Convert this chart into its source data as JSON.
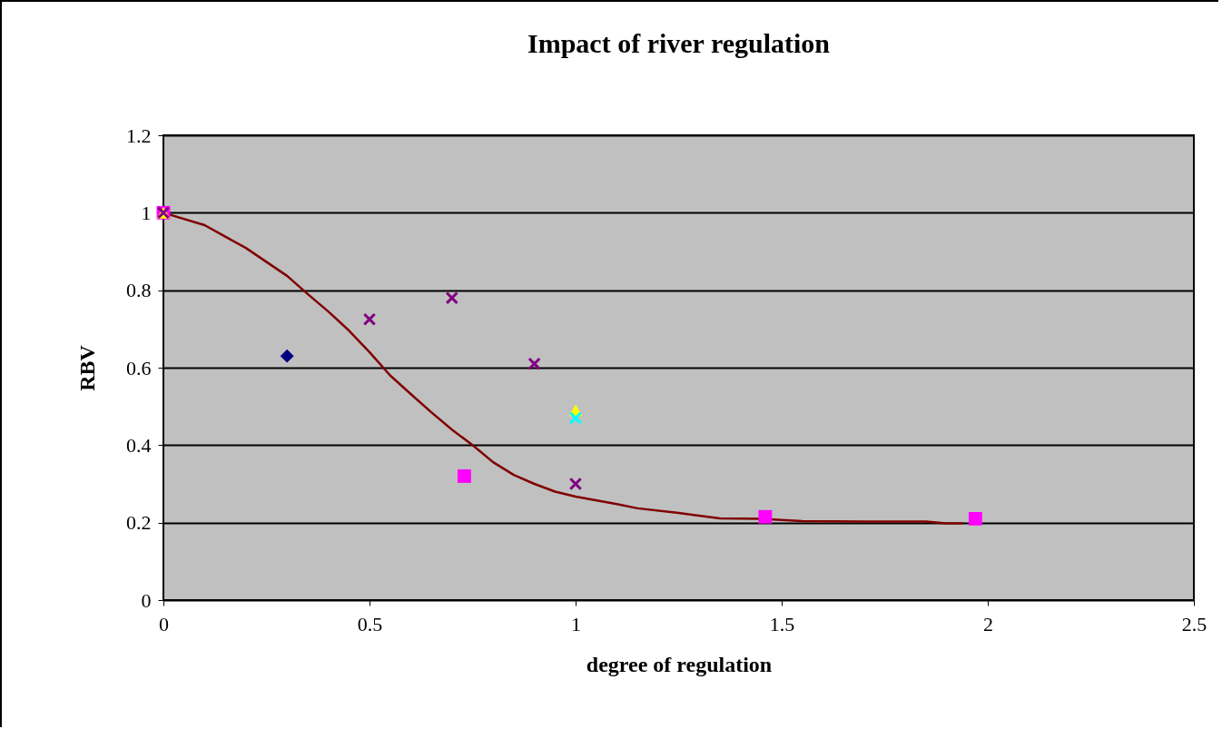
{
  "chart_data": {
    "type": "scatter",
    "title": "Impact of river regulation",
    "xlabel": "degree of regulation",
    "ylabel": "RBV",
    "xlim": [
      0,
      2.5
    ],
    "xticks": [
      0,
      0.5,
      1,
      1.5,
      2,
      2.5
    ],
    "ylim": [
      0,
      1.2
    ],
    "yticks": [
      0,
      0.2,
      0.4,
      0.6,
      0.8,
      1,
      1.2
    ],
    "grid": "y",
    "series": [
      {
        "type": "line",
        "color": "#800000",
        "marker": "none",
        "line_style": "solid",
        "x": [
          0,
          0.1,
          0.2,
          0.3,
          0.35,
          0.4,
          0.45,
          0.5,
          0.55,
          0.6,
          0.65,
          0.7,
          0.75,
          0.8,
          0.85,
          0.9,
          0.95,
          1.0,
          1.1,
          1.15,
          1.25,
          1.35,
          1.45,
          1.55,
          1.7,
          1.85,
          1.9,
          1.94
        ],
        "values": [
          1,
          0.968,
          0.909,
          0.837,
          0.79,
          0.745,
          0.696,
          0.64,
          0.58,
          0.532,
          0.485,
          0.44,
          0.4,
          0.356,
          0.323,
          0.3,
          0.28,
          0.267,
          0.248,
          0.237,
          0.225,
          0.211,
          0.21,
          0.204,
          0.203,
          0.203,
          0.198,
          0.198
        ]
      },
      {
        "type": "scatter",
        "color": "#000080",
        "marker": "diamond",
        "x": [
          0.3
        ],
        "values": [
          0.63
        ]
      },
      {
        "type": "scatter",
        "color": "#ff00ff",
        "marker": "square",
        "x": [
          0,
          0.73,
          1.46,
          1.97
        ],
        "values": [
          1,
          0.32,
          0.215,
          0.21
        ]
      },
      {
        "type": "scatter",
        "color": "#ffff00",
        "marker": "triangle",
        "x": [
          0,
          1
        ],
        "values": [
          1,
          0.49
        ]
      },
      {
        "type": "scatter",
        "color": "#00ffff",
        "marker": "cross",
        "x": [
          1
        ],
        "values": [
          0.47
        ]
      },
      {
        "type": "scatter",
        "color": "#800080",
        "marker": "cross",
        "x": [
          0,
          0.5,
          0.7,
          0.9,
          1
        ],
        "values": [
          1,
          0.725,
          0.78,
          0.61,
          0.3
        ]
      }
    ]
  }
}
